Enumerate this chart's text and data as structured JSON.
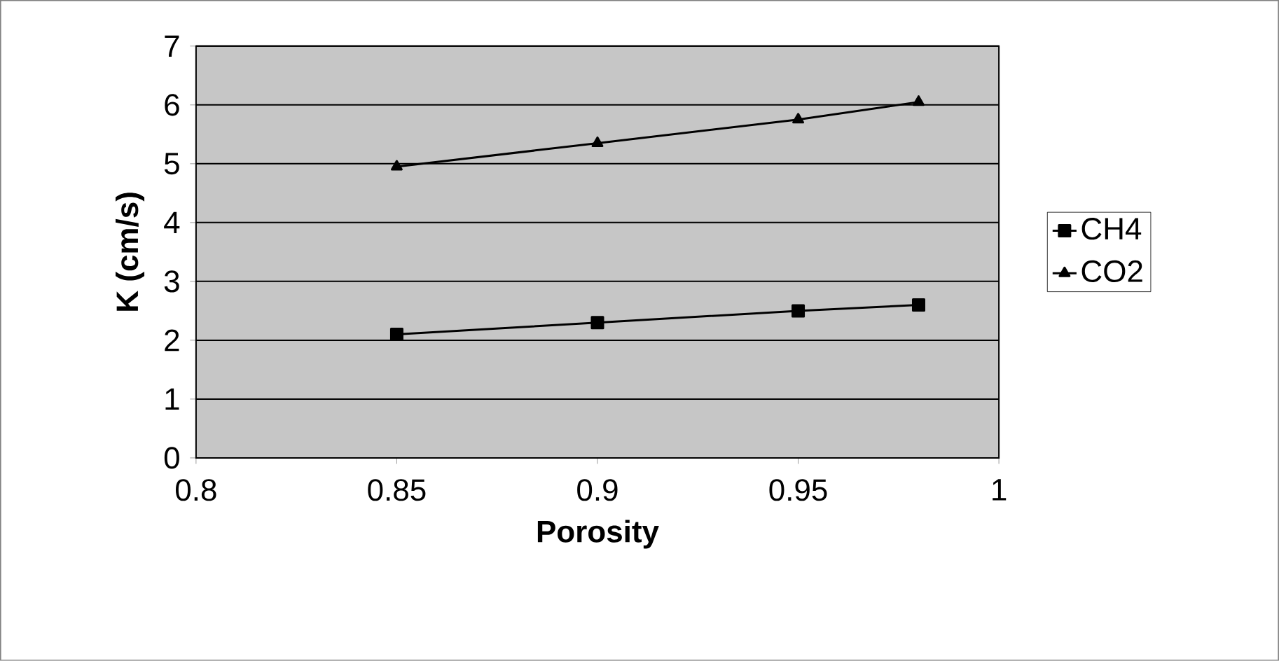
{
  "chart_data": {
    "type": "line",
    "xlabel": "Porosity",
    "ylabel": "K (cm/s)",
    "xlim": [
      0.8,
      1
    ],
    "xticks": [
      0.8,
      0.85,
      0.9,
      0.95,
      1
    ],
    "ylim": [
      0,
      7
    ],
    "yticks": [
      0,
      1,
      2,
      3,
      4,
      5,
      6,
      7
    ],
    "grid": "y",
    "legend": "right",
    "line_style": "solid",
    "series": [
      {
        "name": "CH4",
        "color": "#000000",
        "marker": "square",
        "x": [
          0.85,
          0.9,
          0.95,
          0.98
        ],
        "values": [
          2.1,
          2.3,
          2.5,
          2.6
        ]
      },
      {
        "name": "CO2",
        "color": "#000000",
        "marker": "triangle",
        "x": [
          0.85,
          0.9,
          0.95,
          0.98
        ],
        "values": [
          4.95,
          5.35,
          5.75,
          6.05
        ]
      }
    ]
  }
}
